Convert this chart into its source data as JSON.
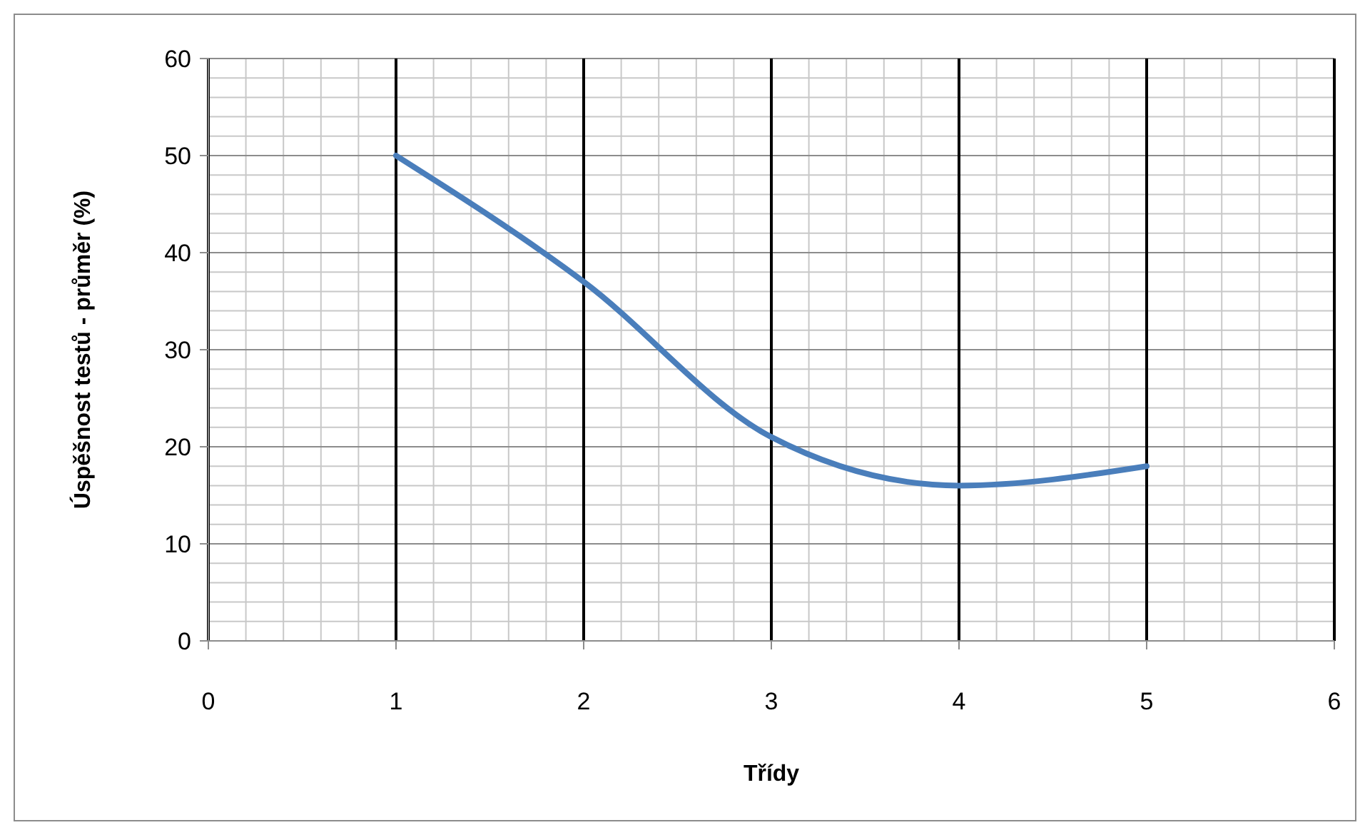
{
  "chart_data": {
    "type": "line",
    "xlabel": "Třídy",
    "ylabel": "Úspěšnost testů - průměr (%)",
    "x": [
      1,
      2,
      3,
      4,
      5
    ],
    "series": [
      {
        "color": "#4a7ebb",
        "values": [
          50,
          37,
          21,
          16,
          18
        ]
      }
    ],
    "xlim": [
      0,
      6
    ],
    "xticks": [
      0,
      1,
      2,
      3,
      4,
      5,
      6
    ],
    "ylim": [
      0,
      60
    ],
    "yticks": [
      0,
      10,
      20,
      30,
      40,
      50,
      60
    ],
    "grid": true,
    "marker": "none",
    "line_style": "solid"
  }
}
